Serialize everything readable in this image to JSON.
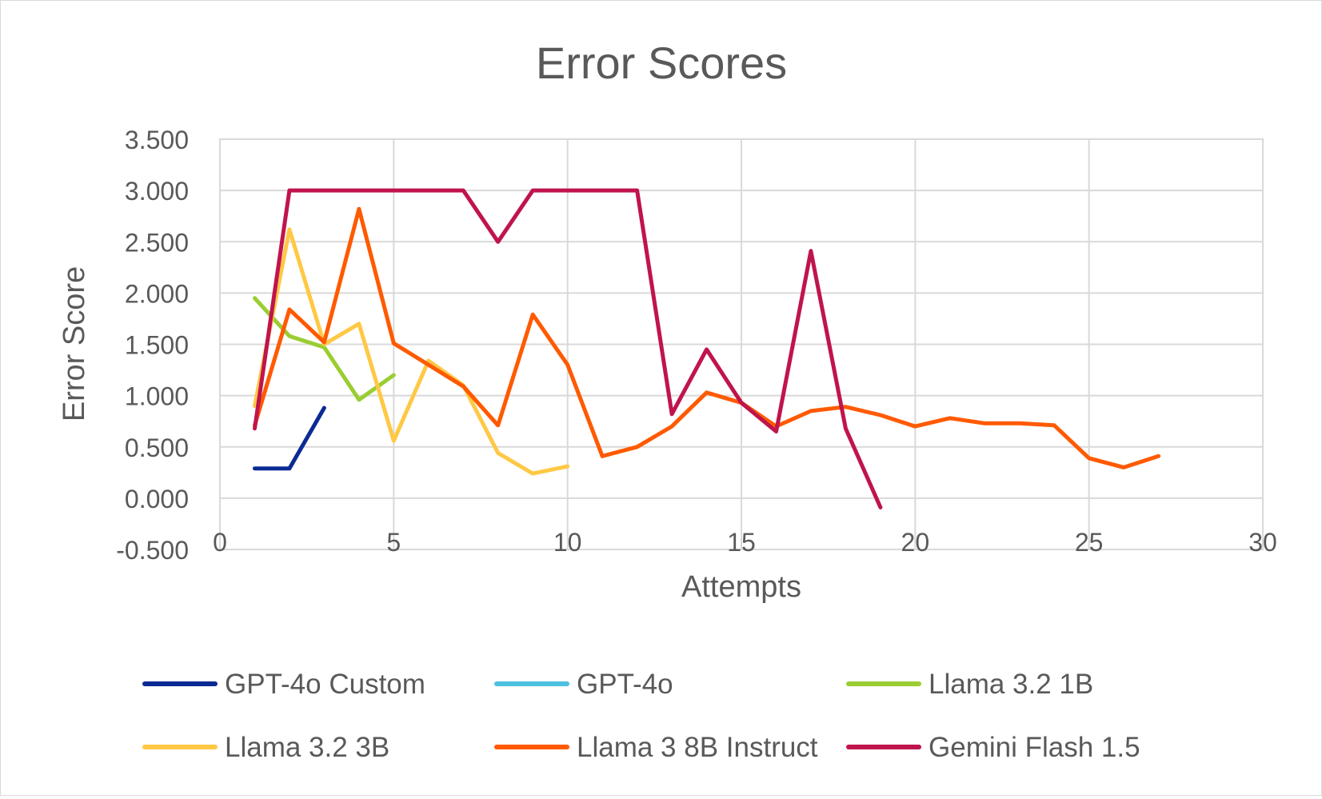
{
  "chart_data": {
    "type": "line",
    "title": "Error Scores",
    "xlabel": "Attempts",
    "ylabel": "Error Score",
    "xlim": [
      0,
      30
    ],
    "ylim": [
      -0.5,
      3.5
    ],
    "xticks": [
      0,
      5,
      10,
      15,
      20,
      25,
      30
    ],
    "xtick_labels": [
      "0",
      "5",
      "10",
      "15",
      "20",
      "25",
      "30"
    ],
    "yticks": [
      -0.5,
      0,
      0.5,
      1,
      1.5,
      2,
      2.5,
      3,
      3.5
    ],
    "ytick_labels": [
      "-0.500",
      "0.000",
      "0.500",
      "1.000",
      "1.500",
      "2.000",
      "2.500",
      "3.000",
      "3.500"
    ],
    "grid": true,
    "legend_position": "bottom",
    "series": [
      {
        "name": "GPT-4o Custom",
        "color": "#0b2a94",
        "x": [
          1,
          2,
          3
        ],
        "values": [
          0.29,
          0.29,
          0.88
        ]
      },
      {
        "name": "GPT-4o",
        "color": "#4cc1e0",
        "x": [],
        "values": []
      },
      {
        "name": "Llama 3.2 1B",
        "color": "#9acd32",
        "x": [
          1,
          2,
          3,
          4,
          5
        ],
        "values": [
          1.95,
          1.58,
          1.47,
          0.96,
          1.2
        ]
      },
      {
        "name": "Llama 3.2 3B",
        "color": "#ffc845",
        "x": [
          1,
          2,
          3,
          4,
          5,
          6,
          7,
          8,
          9,
          10
        ],
        "values": [
          0.9,
          2.62,
          1.5,
          1.7,
          0.56,
          1.34,
          1.1,
          0.44,
          0.24,
          0.31
        ]
      },
      {
        "name": "Llama 3 8B Instruct",
        "color": "#ff5a00",
        "x": [
          1,
          2,
          3,
          4,
          5,
          6,
          7,
          8,
          9,
          10,
          11,
          12,
          13,
          14,
          15,
          16,
          17,
          18,
          19,
          20,
          21,
          22,
          23,
          24,
          25,
          26,
          27
        ],
        "values": [
          0.71,
          1.84,
          1.52,
          2.82,
          1.51,
          1.3,
          1.09,
          0.71,
          1.79,
          1.3,
          0.41,
          0.5,
          0.7,
          1.03,
          0.93,
          0.7,
          0.85,
          0.89,
          0.81,
          0.7,
          0.78,
          0.73,
          0.73,
          0.71,
          0.39,
          0.3,
          0.41
        ]
      },
      {
        "name": "Gemini Flash 1.5",
        "color": "#c0144c",
        "x": [
          1,
          2,
          3,
          4,
          5,
          6,
          7,
          8,
          9,
          10,
          11,
          12,
          13,
          14,
          15,
          16,
          17,
          18,
          19
        ],
        "values": [
          0.68,
          3.0,
          3.0,
          3.0,
          3.0,
          3.0,
          3.0,
          2.5,
          3.0,
          3.0,
          3.0,
          3.0,
          0.82,
          1.45,
          0.93,
          0.65,
          2.41,
          0.68,
          -0.09
        ]
      }
    ]
  }
}
